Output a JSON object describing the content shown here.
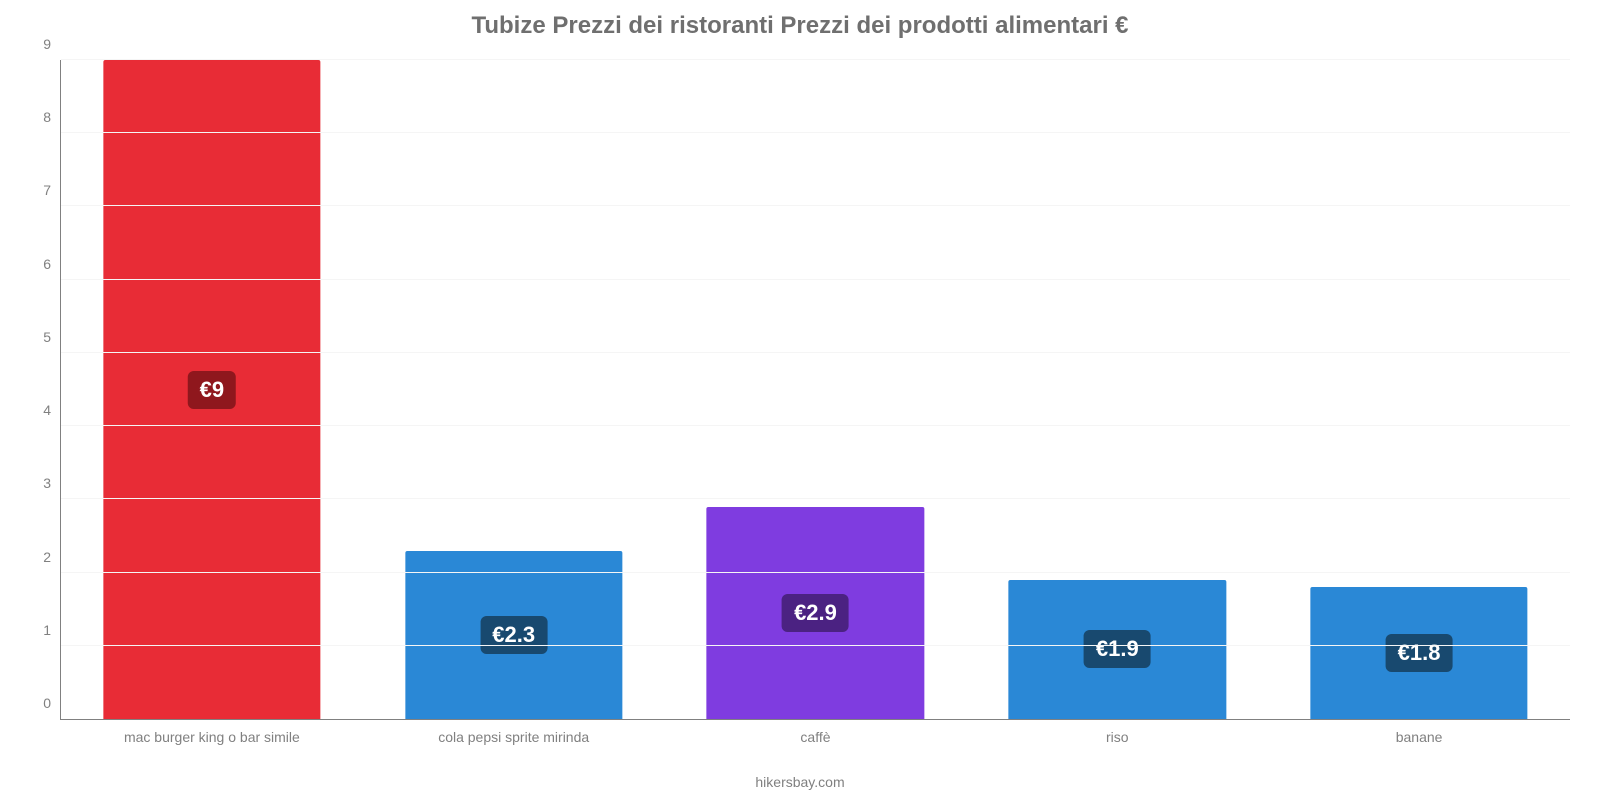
{
  "chart": {
    "type": "bar",
    "title": "Tubize Prezzi dei ristoranti Prezzi dei prodotti alimentari €",
    "title_fontsize": 24,
    "title_color": "#6f6f6f",
    "credit": "hikersbay.com",
    "credit_fontsize": 14,
    "credit_color": "#808080",
    "background_color": "#ffffff",
    "grid_color": "#f5f5f5",
    "axis_color": "#808080",
    "tick_label_color": "#808080",
    "tick_label_fontsize": 14,
    "data_label_fontsize": 22,
    "data_label_text_color": "#ffffff",
    "ylim": [
      0,
      9
    ],
    "ytick_step": 1,
    "yticks": [
      "0",
      "1",
      "2",
      "3",
      "4",
      "5",
      "6",
      "7",
      "8",
      "9"
    ],
    "bar_width_pct": 72,
    "categories": [
      "mac burger king o bar simile",
      "cola pepsi sprite mirinda",
      "caffè",
      "riso",
      "banane"
    ],
    "values": [
      9,
      2.3,
      2.9,
      1.9,
      1.8
    ],
    "value_labels": [
      "€9",
      "€2.3",
      "€2.9",
      "€1.9",
      "€1.8"
    ],
    "bar_colors": [
      "#e82c36",
      "#2a88d6",
      "#7f3ce0",
      "#2a88d6",
      "#2a88d6"
    ],
    "label_bg_colors": [
      "#8f171d",
      "#18496f",
      "#4b2282",
      "#18496f",
      "#18496f"
    ]
  }
}
